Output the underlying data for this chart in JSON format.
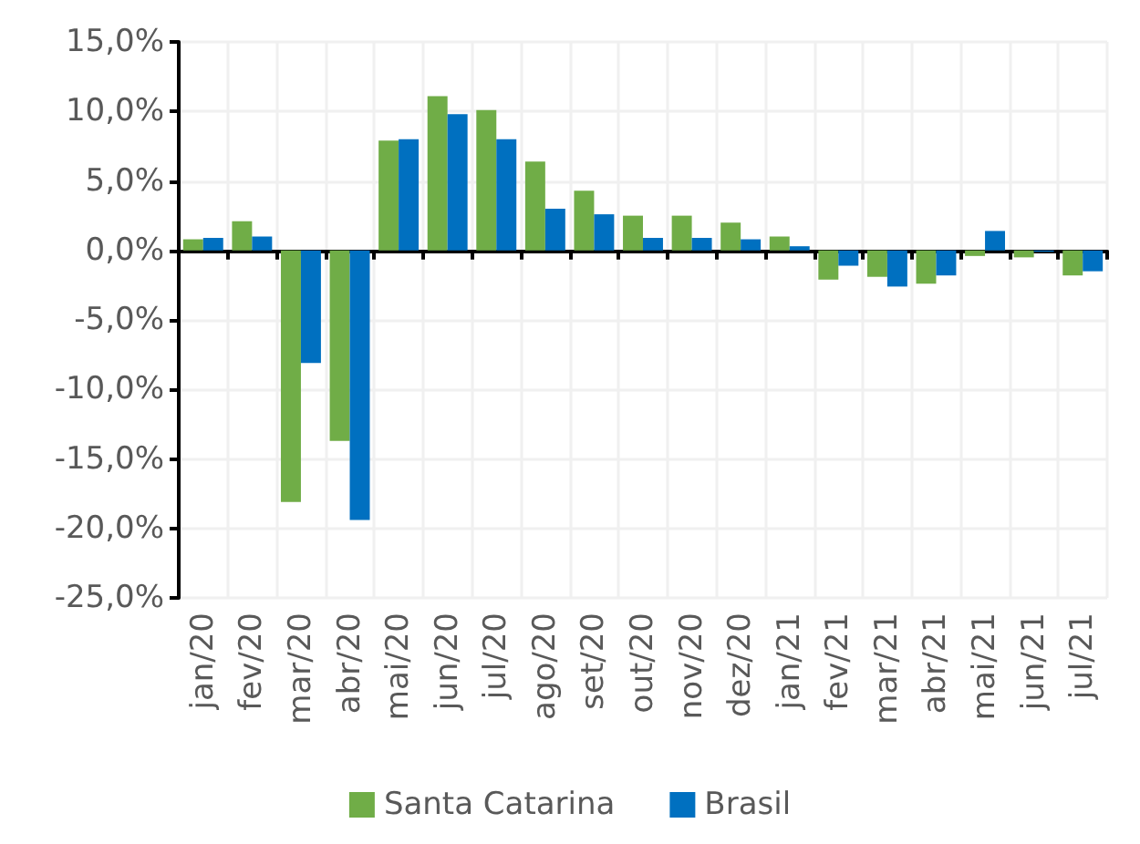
{
  "chart_data": {
    "type": "bar",
    "categories": [
      "jan/20",
      "fev/20",
      "mar/20",
      "abr/20",
      "mai/20",
      "jun/20",
      "jul/20",
      "ago/20",
      "set/20",
      "out/20",
      "nov/20",
      "dez/20",
      "jan/21",
      "fev/21",
      "mar/21",
      "abr/21",
      "mai/21",
      "jun/21",
      "jul/21"
    ],
    "series": [
      {
        "name": "Santa Catarina",
        "color": "#70ad47",
        "values": [
          0.8,
          2.1,
          -18.1,
          -13.7,
          7.9,
          11.1,
          10.1,
          6.4,
          4.3,
          2.5,
          2.5,
          2.0,
          1.0,
          -2.1,
          -1.9,
          -2.4,
          -0.4,
          -0.5,
          -1.8
        ]
      },
      {
        "name": "Brasil",
        "color": "#0070c0",
        "values": [
          0.9,
          1.0,
          -8.1,
          -19.4,
          8.0,
          9.8,
          8.0,
          3.0,
          2.6,
          0.9,
          0.9,
          0.8,
          0.3,
          -1.1,
          -2.6,
          -1.8,
          1.4,
          -0.1,
          -1.5
        ]
      }
    ],
    "ylim": [
      -25,
      15
    ],
    "yticks": [
      {
        "value": -25,
        "label": "-25,0%"
      },
      {
        "value": -20,
        "label": "-20,0%"
      },
      {
        "value": -15,
        "label": "-15,0%"
      },
      {
        "value": -10,
        "label": "-10,0%"
      },
      {
        "value": -5,
        "label": "-5,0%"
      },
      {
        "value": 0,
        "label": "0,0%"
      },
      {
        "value": 5,
        "label": "5,0%"
      },
      {
        "value": 10,
        "label": "10,0%"
      },
      {
        "value": 15,
        "label": "15,0%"
      }
    ],
    "grid": true,
    "legend": "bottom"
  }
}
